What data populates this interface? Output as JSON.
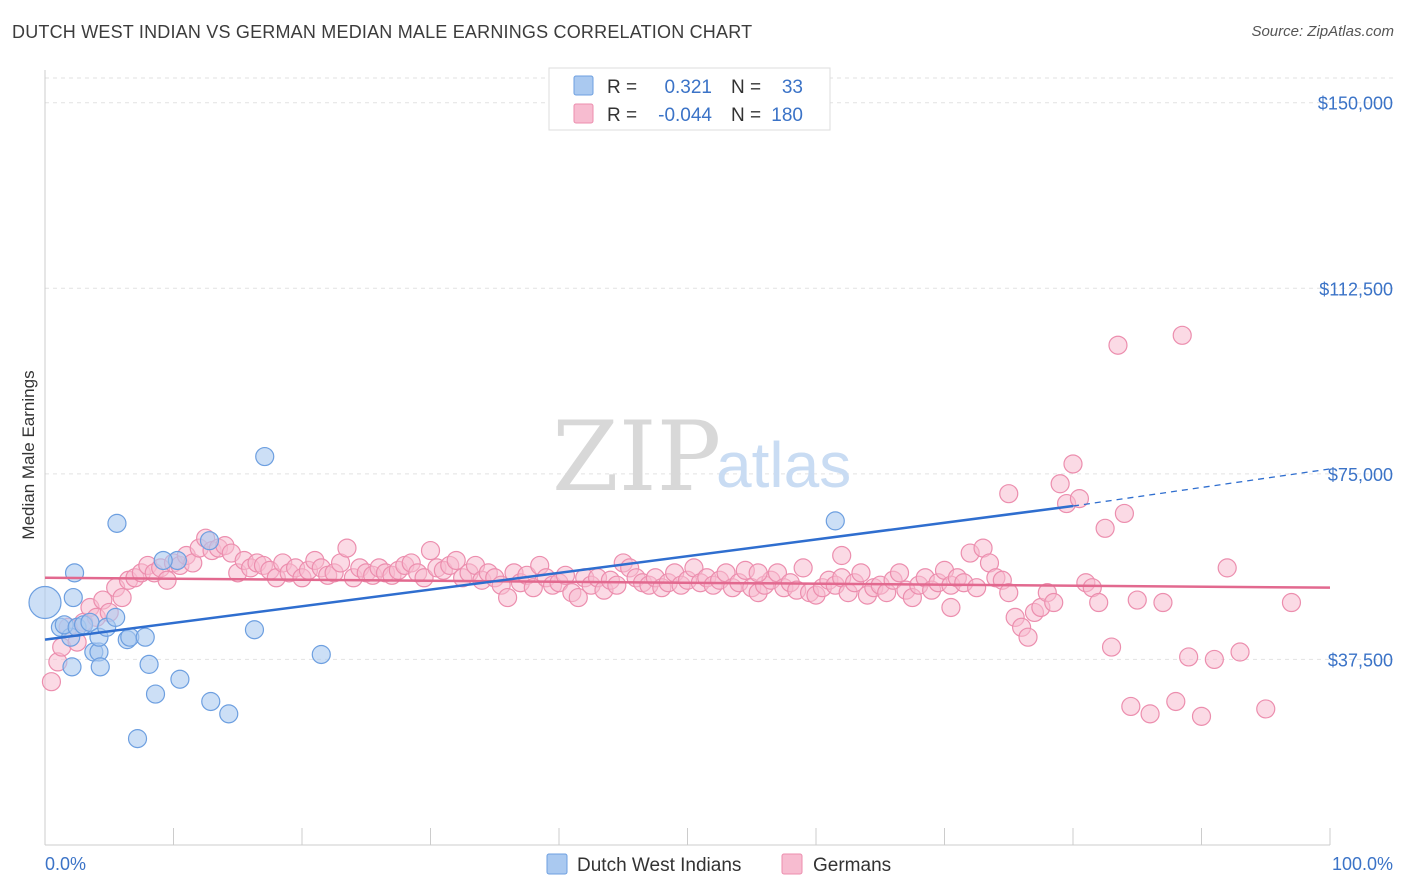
{
  "title": "DUTCH WEST INDIAN VS GERMAN MEDIAN MALE EARNINGS CORRELATION CHART",
  "source": "Source: ZipAtlas.com",
  "watermark": {
    "zip": "ZIP",
    "atlas": "atlas"
  },
  "colors": {
    "blue_fill": "#aac9f0",
    "blue_stroke": "#6d9fe0",
    "blue_line": "#2f6ecf",
    "pink_fill": "#f7bcd0",
    "pink_stroke": "#ec8eae",
    "pink_line": "#e2698f",
    "tick_text": "#3b73c7",
    "grid": "#e2e2e2"
  },
  "legend_top": [
    {
      "r_label": "R =",
      "r_value": "0.321",
      "n_label": "N =",
      "n_value": "33"
    },
    {
      "r_label": "R =",
      "r_value": "-0.044",
      "n_label": "N =",
      "n_value": "180"
    }
  ],
  "legend_bottom": [
    "Dutch West Indians",
    "Germans"
  ],
  "chart_data": {
    "type": "scatter",
    "title": "DUTCH WEST INDIAN VS GERMAN MEDIAN MALE EARNINGS CORRELATION CHART",
    "xlabel": "",
    "ylabel": "Median Male Earnings",
    "xlim": [
      0,
      100
    ],
    "ylim": [
      0,
      155000
    ],
    "x_tick_labels": [
      "0.0%",
      "100.0%"
    ],
    "y_ticks": [
      37500,
      75000,
      112500,
      150000
    ],
    "y_tick_labels": [
      "$37,500",
      "$75,000",
      "$112,500",
      "$150,000"
    ],
    "grid": "horizontal dashed",
    "legend_position": "top-center",
    "series": [
      {
        "name": "Dutch West Indians",
        "r": 0.321,
        "n": 33,
        "trend": {
          "x0": 0,
          "y0": 41500,
          "x1": 80,
          "y1": 68500,
          "dashed_to": {
            "x": 100,
            "y": 76000
          }
        },
        "points": [
          [
            0,
            49000
          ],
          [
            1.2,
            44000
          ],
          [
            2.0,
            42000
          ],
          [
            1.5,
            44500
          ],
          [
            2.5,
            44000
          ],
          [
            2.2,
            50000
          ],
          [
            2.3,
            55000
          ],
          [
            2.1,
            36000
          ],
          [
            3,
            44500
          ],
          [
            3.8,
            39000
          ],
          [
            3.5,
            45000
          ],
          [
            4.2,
            39000
          ],
          [
            4.3,
            36000
          ],
          [
            4.2,
            42000
          ],
          [
            4.8,
            44000
          ],
          [
            5.5,
            46000
          ],
          [
            5.6,
            65000
          ],
          [
            6.4,
            41500
          ],
          [
            6.6,
            42000
          ],
          [
            7.8,
            42000
          ],
          [
            8.1,
            36500
          ],
          [
            8.6,
            30500
          ],
          [
            10.5,
            33500
          ],
          [
            10.3,
            57500
          ],
          [
            12.8,
            61500
          ],
          [
            12.9,
            29000
          ],
          [
            14.3,
            26500
          ],
          [
            16.3,
            43500
          ],
          [
            17.1,
            78500
          ],
          [
            21.5,
            38500
          ],
          [
            7.2,
            21500
          ],
          [
            9.2,
            57500
          ],
          [
            61.5,
            65500
          ]
        ]
      },
      {
        "name": "Germans",
        "r": -0.044,
        "n": 180,
        "trend": {
          "x0": 0,
          "y0": 54000,
          "x1": 100,
          "y1": 52000
        },
        "points": [
          [
            0.5,
            33000
          ],
          [
            1,
            37000
          ],
          [
            1.3,
            40000
          ],
          [
            1.8,
            44000
          ],
          [
            2.5,
            41000
          ],
          [
            3,
            45000
          ],
          [
            3.5,
            48000
          ],
          [
            4,
            46000
          ],
          [
            4.5,
            49500
          ],
          [
            5,
            47000
          ],
          [
            5.5,
            52000
          ],
          [
            6,
            50000
          ],
          [
            6.5,
            53500
          ],
          [
            7,
            54000
          ],
          [
            7.5,
            55000
          ],
          [
            8,
            56500
          ],
          [
            8.5,
            55000
          ],
          [
            9,
            56000
          ],
          [
            9.5,
            53500
          ],
          [
            10,
            57000
          ],
          [
            10.5,
            56500
          ],
          [
            11,
            58500
          ],
          [
            11.5,
            57000
          ],
          [
            12,
            60000
          ],
          [
            12.5,
            62000
          ],
          [
            13,
            59500
          ],
          [
            13.5,
            60000
          ],
          [
            14,
            60500
          ],
          [
            14.5,
            59000
          ],
          [
            15,
            55000
          ],
          [
            15.5,
            57500
          ],
          [
            16,
            56000
          ],
          [
            16.5,
            57000
          ],
          [
            17,
            56500
          ],
          [
            17.5,
            55500
          ],
          [
            18,
            54000
          ],
          [
            18.5,
            57000
          ],
          [
            19,
            55000
          ],
          [
            19.5,
            56000
          ],
          [
            20,
            54000
          ],
          [
            20.5,
            55500
          ],
          [
            21,
            57500
          ],
          [
            21.5,
            56000
          ],
          [
            22,
            54500
          ],
          [
            22.5,
            55000
          ],
          [
            23,
            57000
          ],
          [
            23.5,
            60000
          ],
          [
            24,
            54000
          ],
          [
            24.5,
            56000
          ],
          [
            25,
            55000
          ],
          [
            25.5,
            54500
          ],
          [
            26,
            56000
          ],
          [
            26.5,
            55000
          ],
          [
            27,
            54500
          ],
          [
            27.5,
            55500
          ],
          [
            28,
            56500
          ],
          [
            28.5,
            57000
          ],
          [
            29,
            55000
          ],
          [
            29.5,
            54000
          ],
          [
            30,
            59500
          ],
          [
            30.5,
            56000
          ],
          [
            31,
            55500
          ],
          [
            31.5,
            56500
          ],
          [
            32,
            57500
          ],
          [
            32.5,
            54000
          ],
          [
            33,
            55000
          ],
          [
            33.5,
            56500
          ],
          [
            34,
            53500
          ],
          [
            34.5,
            55000
          ],
          [
            35,
            54000
          ],
          [
            35.5,
            52500
          ],
          [
            36,
            50000
          ],
          [
            36.5,
            55000
          ],
          [
            37,
            53000
          ],
          [
            37.5,
            54500
          ],
          [
            38,
            52000
          ],
          [
            38.5,
            56500
          ],
          [
            39,
            54000
          ],
          [
            39.5,
            52500
          ],
          [
            40,
            53000
          ],
          [
            40.5,
            54500
          ],
          [
            41,
            51000
          ],
          [
            41.5,
            50000
          ],
          [
            42,
            54000
          ],
          [
            42.5,
            52500
          ],
          [
            43,
            54000
          ],
          [
            43.5,
            51500
          ],
          [
            44,
            53500
          ],
          [
            44.5,
            52500
          ],
          [
            45,
            57000
          ],
          [
            45.5,
            56000
          ],
          [
            46,
            54000
          ],
          [
            46.5,
            53000
          ],
          [
            47,
            52500
          ],
          [
            47.5,
            54000
          ],
          [
            48,
            52000
          ],
          [
            48.5,
            53000
          ],
          [
            49,
            55000
          ],
          [
            49.5,
            52500
          ],
          [
            50,
            53500
          ],
          [
            50.5,
            56000
          ],
          [
            51,
            53000
          ],
          [
            51.5,
            54000
          ],
          [
            52,
            52500
          ],
          [
            52.5,
            53500
          ],
          [
            53,
            55000
          ],
          [
            53.5,
            52000
          ],
          [
            54,
            53000
          ],
          [
            54.5,
            55500
          ],
          [
            55,
            52000
          ],
          [
            55.5,
            51000
          ],
          [
            56,
            52500
          ],
          [
            56.5,
            53500
          ],
          [
            57,
            55000
          ],
          [
            57.5,
            52000
          ],
          [
            58,
            53000
          ],
          [
            58.5,
            51500
          ],
          [
            59,
            56000
          ],
          [
            59.5,
            51000
          ],
          [
            60,
            50500
          ],
          [
            60.5,
            52000
          ],
          [
            61,
            53500
          ],
          [
            61.5,
            52500
          ],
          [
            62,
            54000
          ],
          [
            62.5,
            51000
          ],
          [
            63,
            53000
          ],
          [
            63.5,
            55000
          ],
          [
            64,
            50500
          ],
          [
            64.5,
            52000
          ],
          [
            65,
            52500
          ],
          [
            65.5,
            51000
          ],
          [
            66,
            53500
          ],
          [
            66.5,
            55000
          ],
          [
            67,
            51500
          ],
          [
            67.5,
            50000
          ],
          [
            68,
            52500
          ],
          [
            68.5,
            54000
          ],
          [
            69,
            51500
          ],
          [
            69.5,
            53000
          ],
          [
            70,
            55500
          ],
          [
            70.5,
            52500
          ],
          [
            71,
            54000
          ],
          [
            71.5,
            53000
          ],
          [
            72,
            59000
          ],
          [
            72.5,
            52000
          ],
          [
            73,
            60000
          ],
          [
            73.5,
            57000
          ],
          [
            74,
            54000
          ],
          [
            74.5,
            53500
          ],
          [
            75,
            51000
          ],
          [
            75.5,
            46000
          ],
          [
            76,
            44000
          ],
          [
            76.5,
            42000
          ],
          [
            77,
            47000
          ],
          [
            77.5,
            48000
          ],
          [
            78,
            51000
          ],
          [
            78.5,
            49000
          ],
          [
            79,
            73000
          ],
          [
            79.5,
            69000
          ],
          [
            80,
            77000
          ],
          [
            80.5,
            70000
          ],
          [
            81,
            53000
          ],
          [
            81.5,
            52000
          ],
          [
            82,
            49000
          ],
          [
            82.5,
            64000
          ],
          [
            83,
            40000
          ],
          [
            83.5,
            101000
          ],
          [
            84,
            67000
          ],
          [
            84.5,
            28000
          ],
          [
            85,
            49500
          ],
          [
            86,
            26500
          ],
          [
            87,
            49000
          ],
          [
            88,
            29000
          ],
          [
            88.5,
            103000
          ],
          [
            89,
            38000
          ],
          [
            90,
            26000
          ],
          [
            91,
            37500
          ],
          [
            92,
            56000
          ],
          [
            93,
            39000
          ],
          [
            95,
            27500
          ],
          [
            97,
            49000
          ],
          [
            75,
            71000
          ],
          [
            55.5,
            55000
          ],
          [
            62,
            58500
          ],
          [
            70.5,
            48000
          ]
        ]
      }
    ]
  }
}
